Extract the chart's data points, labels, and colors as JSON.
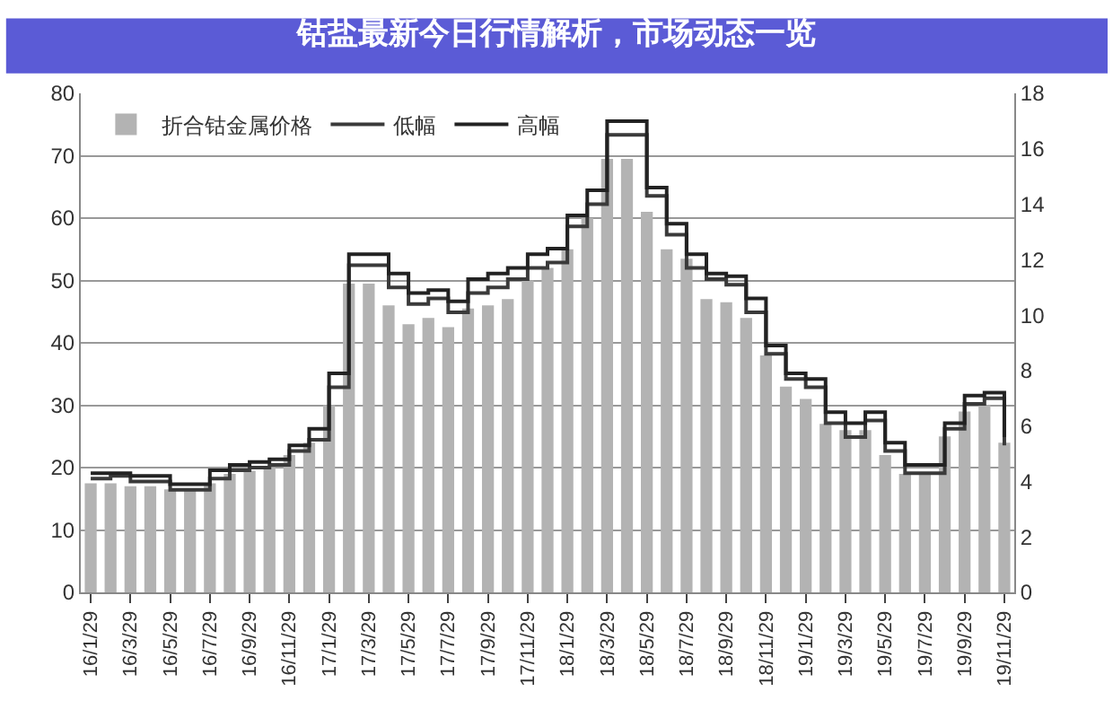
{
  "chart_data": {
    "type": "bar",
    "title": "钴盐最新今日行情解析，市场动态一览",
    "categories": [
      "16/1/29",
      null,
      "16/3/29",
      null,
      "16/5/29",
      null,
      "16/7/29",
      null,
      "16/9/29",
      null,
      "16/11/29",
      null,
      "17/1/29",
      null,
      "17/3/29",
      null,
      "17/5/29",
      null,
      "17/7/29",
      null,
      "17/9/29",
      null,
      "17/11/29",
      null,
      "18/1/29",
      null,
      "18/3/29",
      null,
      "18/5/29",
      null,
      "18/7/29",
      null,
      "18/9/29",
      null,
      "18/11/29",
      null,
      "19/1/29",
      null,
      "19/3/29",
      null,
      "19/5/29",
      null,
      "19/7/29",
      null,
      "19/9/29",
      null,
      "19/11/29"
    ],
    "series": [
      {
        "name": "折合钴金属价格",
        "color": "#b3b3b3",
        "values": [
          17.5,
          17.5,
          17,
          17,
          16.5,
          16.5,
          17.5,
          19,
          19.5,
          20,
          22,
          24,
          30,
          49.5,
          49.5,
          46,
          43,
          44,
          42.5,
          45.5,
          46,
          47,
          50,
          52,
          55,
          60,
          69.5,
          69.5,
          61,
          55,
          53.5,
          47,
          46.5,
          44,
          38,
          33,
          31,
          27,
          26,
          26,
          22,
          19,
          19,
          25,
          29,
          30,
          24
        ]
      },
      {
        "name": "低幅",
        "type": "step",
        "axis": "y2",
        "color": "#3a3a3a",
        "values": [
          4.1,
          4.2,
          4.0,
          4.0,
          3.7,
          3.7,
          4.1,
          4.4,
          4.5,
          4.6,
          5.1,
          5.5,
          7.4,
          11.8,
          11.8,
          11.0,
          10.4,
          10.6,
          10.1,
          10.8,
          11.0,
          11.3,
          11.7,
          11.9,
          13.2,
          14.0,
          16.5,
          16.5,
          14.3,
          12.9,
          11.7,
          11.3,
          11.1,
          10.1,
          8.6,
          7.7,
          7.4,
          6.1,
          5.6,
          6.2,
          5.1,
          4.3,
          4.3,
          5.9,
          6.8,
          7.0,
          5.3
        ]
      },
      {
        "name": "高幅",
        "type": "step",
        "axis": "y2",
        "color": "#222222",
        "values": [
          4.3,
          4.3,
          4.2,
          4.2,
          3.9,
          3.9,
          4.4,
          4.6,
          4.7,
          4.8,
          5.3,
          5.9,
          7.9,
          12.2,
          12.2,
          11.5,
          10.8,
          10.9,
          10.5,
          11.3,
          11.5,
          11.7,
          12.2,
          12.4,
          13.6,
          14.5,
          17.0,
          17.0,
          14.6,
          13.3,
          12.2,
          11.5,
          11.4,
          10.6,
          8.9,
          7.9,
          7.7,
          6.5,
          6.1,
          6.5,
          5.4,
          4.6,
          4.6,
          6.1,
          7.1,
          7.2,
          5.6
        ]
      }
    ],
    "ylim": [
      0,
      80
    ],
    "yticks": [
      0,
      10,
      20,
      30,
      40,
      50,
      60,
      70,
      80
    ],
    "y2lim": [
      0,
      18
    ],
    "y2ticks": [
      0,
      2,
      4,
      6,
      8,
      10,
      12,
      14,
      16,
      18
    ],
    "grid": "y",
    "legend": "top left"
  }
}
